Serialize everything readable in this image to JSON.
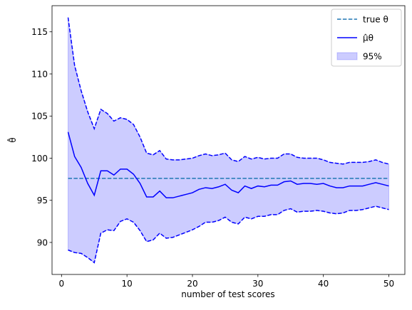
{
  "chart_data": {
    "type": "line",
    "xlabel": "number of test scores",
    "ylabel": "θ̂",
    "x": [
      1,
      2,
      3,
      4,
      5,
      6,
      7,
      8,
      9,
      10,
      11,
      12,
      13,
      14,
      15,
      16,
      17,
      18,
      19,
      20,
      21,
      22,
      23,
      24,
      25,
      26,
      27,
      28,
      29,
      30,
      31,
      32,
      33,
      34,
      35,
      36,
      37,
      38,
      39,
      40,
      41,
      42,
      43,
      44,
      45,
      46,
      47,
      48,
      49,
      50
    ],
    "series": [
      {
        "name": "μ̂θ",
        "color": "#0000ff",
        "values": [
          103.1,
          100.2,
          98.9,
          97.0,
          95.6,
          98.5,
          98.5,
          98.0,
          98.7,
          98.7,
          98.1,
          97.0,
          95.4,
          95.4,
          96.1,
          95.3,
          95.3,
          95.5,
          95.7,
          95.9,
          96.3,
          96.5,
          96.4,
          96.6,
          96.9,
          96.2,
          95.9,
          96.7,
          96.4,
          96.7,
          96.6,
          96.8,
          96.8,
          97.2,
          97.3,
          96.9,
          97.0,
          97.0,
          96.9,
          97.0,
          96.7,
          96.5,
          96.5,
          96.7,
          96.7,
          96.7,
          96.9,
          97.1,
          96.9,
          96.7
        ]
      }
    ],
    "band": {
      "name": "95%",
      "color": "#0000ff",
      "upper": [
        116.7,
        111.0,
        108.0,
        105.5,
        103.5,
        105.8,
        105.3,
        104.4,
        104.8,
        104.6,
        104.0,
        102.5,
        100.6,
        100.4,
        100.9,
        99.9,
        99.8,
        99.8,
        99.9,
        100.0,
        100.3,
        100.5,
        100.3,
        100.4,
        100.6,
        99.8,
        99.6,
        100.2,
        99.9,
        100.1,
        99.9,
        100.0,
        100.0,
        100.5,
        100.5,
        100.1,
        100.0,
        100.0,
        100.0,
        99.8,
        99.5,
        99.4,
        99.3,
        99.5,
        99.5,
        99.5,
        99.6,
        99.8,
        99.5,
        99.3
      ],
      "lower": [
        89.1,
        88.8,
        88.7,
        88.2,
        87.6,
        91.1,
        91.5,
        91.4,
        92.5,
        92.8,
        92.4,
        91.4,
        90.1,
        90.3,
        91.1,
        90.5,
        90.6,
        90.9,
        91.2,
        91.5,
        91.9,
        92.4,
        92.4,
        92.6,
        93.0,
        92.4,
        92.2,
        93.0,
        92.8,
        93.1,
        93.1,
        93.3,
        93.3,
        93.8,
        94.0,
        93.6,
        93.7,
        93.7,
        93.8,
        93.7,
        93.5,
        93.4,
        93.5,
        93.8,
        93.8,
        93.9,
        94.1,
        94.3,
        94.1,
        93.9
      ]
    },
    "reference": {
      "name": "true θ",
      "value": 97.6,
      "color": "#1f77b4"
    },
    "xlim": [
      -1.45,
      52.45
    ],
    "ylim": [
      86.2,
      118.1
    ],
    "xticks": [
      0,
      10,
      20,
      30,
      40,
      50
    ],
    "yticks": [
      90,
      95,
      100,
      105,
      110,
      115
    ],
    "legend": "upper right"
  }
}
